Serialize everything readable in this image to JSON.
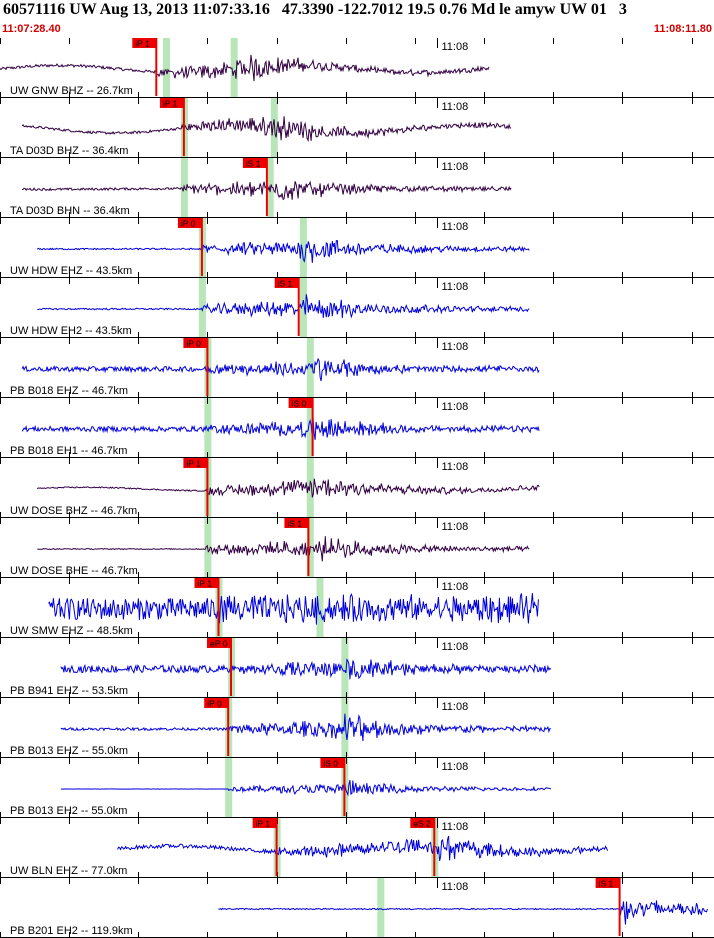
{
  "header": {
    "title": "60571116 UW Aug 13, 2013 11:07:33.16   47.3390 -122.7012 19.5 0.76 Md le amyw UW 01   3",
    "start_time": "11:07:28.40",
    "end_time": "11:08:11.80"
  },
  "colors": {
    "pick_red": "#ee0000",
    "trace_blue": "#0000dd",
    "trace_dark": "#330044",
    "window_green": "#b8e6b8",
    "tick_black": "#000000"
  },
  "chart_data": {
    "type": "line",
    "title": "60571116 UW Aug 13, 2013 11:07:33.16   47.3390 -122.7012 19.5 0.76 Md le amyw UW 01   3",
    "x_axis": {
      "start": "11:07:28.40",
      "end": "11:08:11.80",
      "minute_mark": "11:08",
      "minute_mark_seconds": 31.6,
      "tick_interval_s": 5
    },
    "channels": [
      {
        "label": "UW GNW BHZ -- 26.7km",
        "trace": "dark",
        "pick": "iP 1",
        "pick_s": 11.3,
        "s_pick": "",
        "s_pick_s": null,
        "green_windows_s": [
          12.0,
          16.9
        ],
        "trace_span_s": [
          0,
          35.4
        ],
        "onset_s": 11.3,
        "peak_s": 17.4,
        "noise": 0.12,
        "wave": 0.55,
        "amp": 0.9
      },
      {
        "label": "TA D03D BHZ -- 36.4km",
        "trace": "dark",
        "pick": "iP 1",
        "pick_s": 13.3,
        "s_pick": "",
        "s_pick_s": null,
        "green_windows_s": [
          13.3,
          19.8
        ],
        "trace_span_s": [
          1.6,
          37.0
        ],
        "onset_s": 13.1,
        "peak_s": 19.8,
        "noise": 0.1,
        "wave": 0.6,
        "amp": 0.9
      },
      {
        "label": "TA D03D BHN -- 36.4km",
        "trace": "dark",
        "pick": "iS 1",
        "pick_s": 19.3,
        "s_pick": "",
        "s_pick_s": null,
        "green_windows_s": [
          13.3,
          19.5
        ],
        "trace_span_s": [
          1.6,
          37.0
        ],
        "onset_s": 13.1,
        "peak_s": 19.5,
        "noise": 0.1,
        "wave": 0.05,
        "amp": 0.85
      },
      {
        "label": "UW HDW EHZ -- 43.5km",
        "trace": "blue",
        "pick": "iP 0",
        "pick_s": 14.6,
        "s_pick": "",
        "s_pick_s": null,
        "green_windows_s": [
          14.6,
          21.9
        ],
        "trace_span_s": [
          2.7,
          38.3
        ],
        "onset_s": 14.6,
        "peak_s": 21.9,
        "noise": 0.06,
        "wave": 0.0,
        "amp": 0.9
      },
      {
        "label": "UW HDW EH2 -- 43.5km",
        "trace": "blue",
        "pick": "iS 1",
        "pick_s": 21.6,
        "s_pick": "",
        "s_pick_s": null,
        "green_windows_s": [
          14.6,
          21.9
        ],
        "trace_span_s": [
          2.7,
          38.3
        ],
        "onset_s": 14.6,
        "peak_s": 21.9,
        "noise": 0.06,
        "wave": 0.0,
        "amp": 0.9
      },
      {
        "label": "PB B018 EHZ -- 46.7km",
        "trace": "blue",
        "pick": "iP 0",
        "pick_s": 15.0,
        "s_pick": "",
        "s_pick_s": null,
        "green_windows_s": [
          15.0,
          22.4
        ],
        "trace_span_s": [
          1.6,
          39.0
        ],
        "onset_s": 14.9,
        "peak_s": 22.5,
        "noise": 0.22,
        "wave": 0.0,
        "amp": 0.85
      },
      {
        "label": "PB B018 EH1 -- 46.7km",
        "trace": "blue",
        "pick": "iS 0",
        "pick_s": 22.6,
        "s_pick": "",
        "s_pick_s": null,
        "green_windows_s": [
          15.0,
          22.4
        ],
        "trace_span_s": [
          1.6,
          39.0
        ],
        "onset_s": 14.9,
        "peak_s": 22.5,
        "noise": 0.22,
        "wave": 0.0,
        "amp": 0.85
      },
      {
        "label": "UW DOSE BHZ -- 46.7km",
        "trace": "dark",
        "pick": "iP 1",
        "pick_s": 15.0,
        "s_pick": "",
        "s_pick_s": null,
        "green_windows_s": [
          15.0,
          22.4
        ],
        "trace_span_s": [
          2.7,
          39.0
        ],
        "onset_s": 14.9,
        "peak_s": 22.5,
        "noise": 0.05,
        "wave": 0.25,
        "amp": 0.9
      },
      {
        "label": "UW DOSE BHE -- 46.7km",
        "trace": "dark",
        "pick": "iS 1",
        "pick_s": 22.3,
        "s_pick": "",
        "s_pick_s": null,
        "green_windows_s": [
          15.0,
          22.4
        ],
        "trace_span_s": [
          2.7,
          38.3
        ],
        "onset_s": 14.9,
        "peak_s": 22.5,
        "noise": 0.04,
        "wave": 0.0,
        "amp": 0.85
      },
      {
        "label": "UW SMW EHZ -- 48.5km",
        "trace": "blue",
        "pick": "iP 1",
        "pick_s": 15.8,
        "s_pick": "",
        "s_pick_s": null,
        "green_windows_s": [
          15.8,
          23.1
        ],
        "trace_span_s": [
          3.5,
          39.0
        ],
        "onset_s": 15.8,
        "peak_s": 23.1,
        "noise": 0.85,
        "wave": 0.0,
        "amp": 0.95
      },
      {
        "label": "PB B941 EHZ -- 53.5km",
        "trace": "blue",
        "pick": "eP 0",
        "pick_s": 16.7,
        "s_pick": "",
        "s_pick_s": null,
        "green_windows_s": [
          16.7,
          24.9
        ],
        "trace_span_s": [
          4.4,
          39.9
        ],
        "onset_s": 16.7,
        "peak_s": 24.9,
        "noise": 0.3,
        "wave": 0.0,
        "amp": 0.9
      },
      {
        "label": "PB B013 EHZ -- 55.0km",
        "trace": "blue",
        "pick": "iP 0",
        "pick_s": 16.5,
        "s_pick": "",
        "s_pick_s": null,
        "green_windows_s": [
          16.5,
          24.9
        ],
        "trace_span_s": [
          4.4,
          39.9
        ],
        "onset_s": 16.5,
        "peak_s": 24.9,
        "noise": 0.1,
        "wave": 0.0,
        "amp": 0.95
      },
      {
        "label": "PB B013 EH2 -- 55.0km",
        "trace": "blue",
        "pick": "iS 0",
        "pick_s": 24.9,
        "s_pick": "",
        "s_pick_s": null,
        "green_windows_s": [
          16.5,
          24.9
        ],
        "trace_span_s": [
          4.4,
          39.9
        ],
        "onset_s": 16.5,
        "peak_s": 24.9,
        "noise": 0.02,
        "wave": 0.0,
        "amp": 0.55
      },
      {
        "label": "UW BLN EHZ -- 77.0km",
        "trace": "blue",
        "pick": "iP 1",
        "pick_s": 20.0,
        "s_pick": "eS 2",
        "s_pick_s": 31.4,
        "green_windows_s": [
          20.0,
          31.4
        ],
        "trace_span_s": [
          8.5,
          44.0
        ],
        "onset_s": 20.0,
        "peak_s": 31.5,
        "noise": 0.15,
        "wave": 0.45,
        "amp": 0.9
      },
      {
        "label": "PB B201 EH2 -- 119.9km",
        "trace": "blue",
        "pick": "iS 1",
        "pick_s": 44.8,
        "s_pick": "",
        "s_pick_s": null,
        "green_windows_s": [
          27.5
        ],
        "trace_span_s": [
          15.8,
          51.2
        ],
        "onset_s": 44.8,
        "peak_s": 44.9,
        "noise": 0.05,
        "wave": 0.0,
        "amp": 0.9
      }
    ]
  }
}
